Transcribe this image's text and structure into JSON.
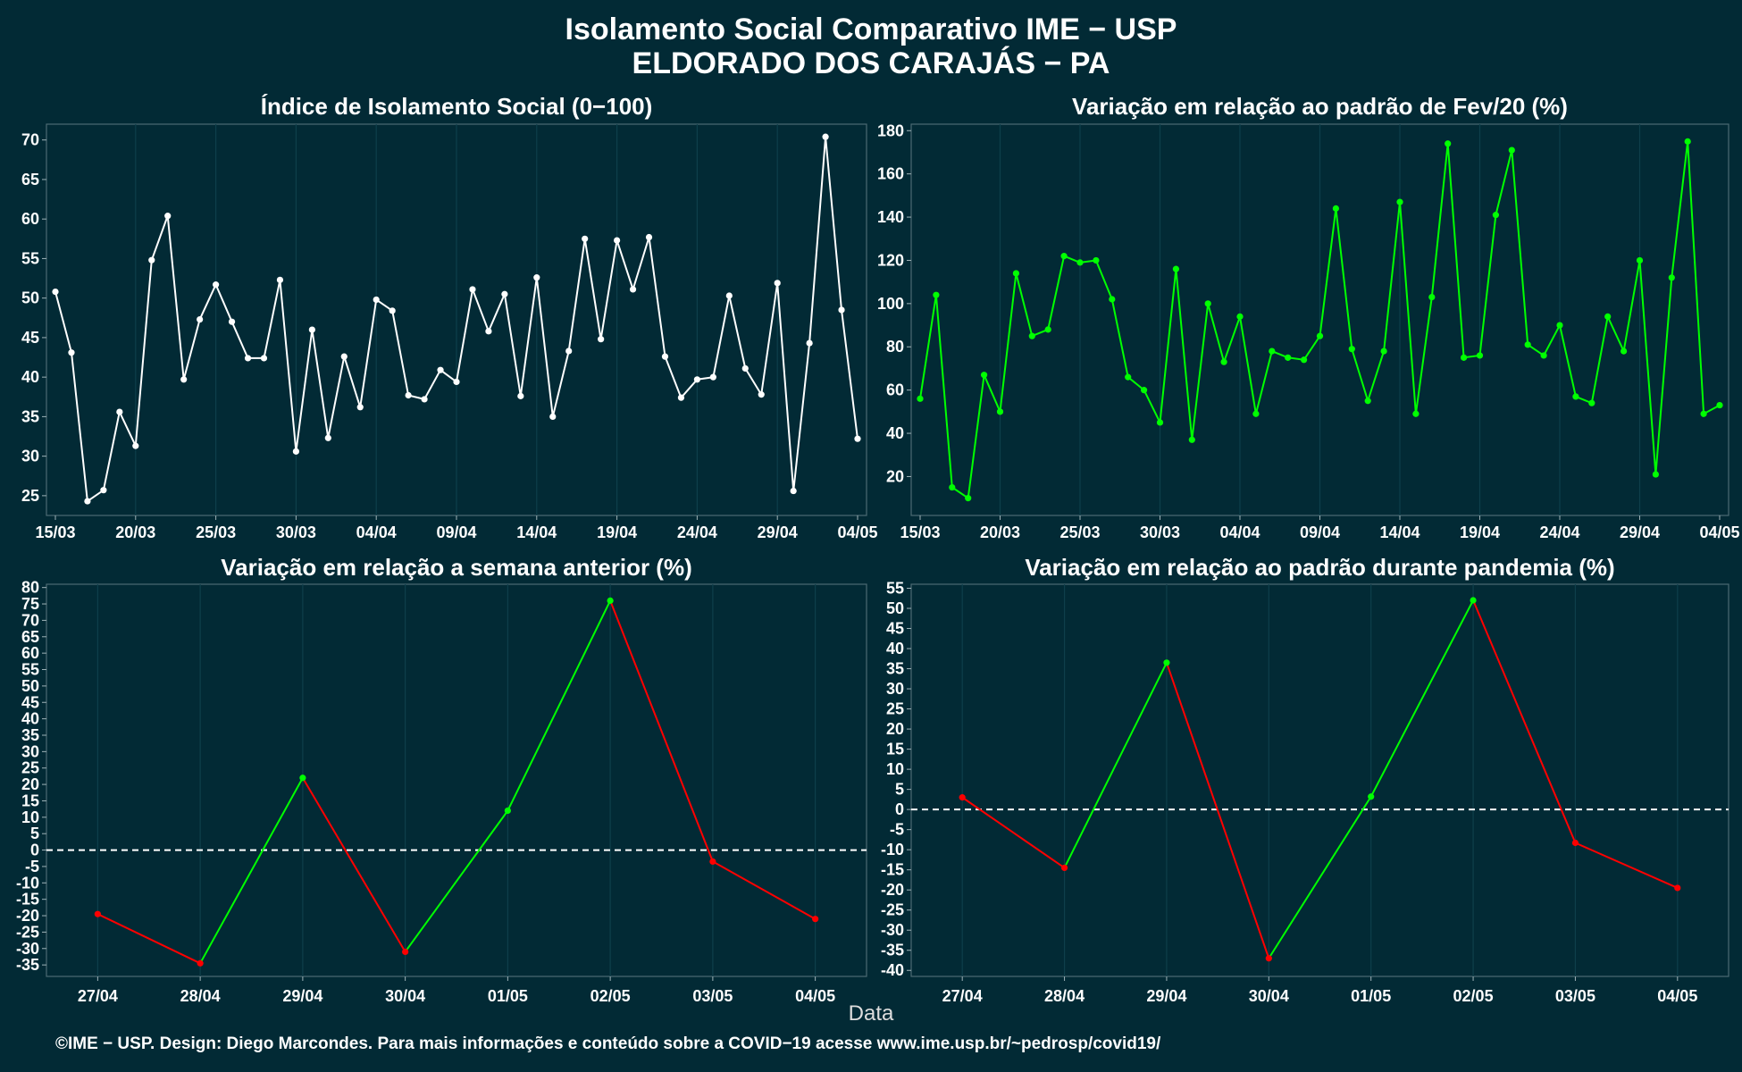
{
  "title_line1": "Isolamento Social Comparativo IME − USP",
  "title_line2": "ELDORADO DOS CARAJÁS − PA",
  "x_axis_label": "Data",
  "footer": "©IME − USP. Design: Diego Marcondes. Para mais informações e conteúdo sobre a COVID−19 acesse www.ime.usp.br/~pedrosp/covid19/",
  "colors": {
    "background": "#022a35",
    "white_series": "#ffffff",
    "green_series": "#00ff00",
    "increase": "#00ff00",
    "decrease": "#ff0000",
    "grid": "#0e3f4b"
  },
  "chart_data": [
    {
      "type": "line",
      "title": "Índice de Isolamento Social (0−100)",
      "x_labels": [
        "15/03",
        "20/03",
        "25/03",
        "30/03",
        "04/04",
        "09/04",
        "14/04",
        "19/04",
        "24/04",
        "29/04",
        "04/05"
      ],
      "x_start": "15/03",
      "x_end": "04/05",
      "ylim": [
        22.5,
        72
      ],
      "yticks": [
        25,
        30,
        35,
        40,
        45,
        50,
        55,
        60,
        65,
        70
      ],
      "grid": true,
      "values": [
        50.8,
        43.1,
        24.3,
        25.7,
        35.6,
        31.3,
        54.8,
        60.4,
        39.7,
        47.3,
        51.7,
        47.0,
        42.4,
        42.4,
        52.3,
        30.6,
        46.0,
        32.3,
        42.6,
        36.2,
        49.8,
        48.4,
        37.7,
        37.2,
        40.9,
        39.4,
        51.1,
        45.8,
        50.5,
        37.6,
        52.6,
        35.0,
        43.3,
        57.5,
        44.8,
        57.3,
        51.1,
        57.7,
        42.6,
        37.4,
        39.7,
        40.0,
        50.3,
        41.1,
        37.8,
        51.9,
        25.6,
        44.3,
        70.4,
        48.5,
        32.2
      ],
      "series_color": "#ffffff"
    },
    {
      "type": "line",
      "title": "Variação em relação ao padrão de Fev/20 (%)",
      "x_labels": [
        "15/03",
        "20/03",
        "25/03",
        "30/03",
        "04/04",
        "09/04",
        "14/04",
        "19/04",
        "24/04",
        "29/04",
        "04/05"
      ],
      "x_start": "15/03",
      "x_end": "04/05",
      "ylim": [
        2,
        183
      ],
      "yticks": [
        20,
        40,
        60,
        80,
        100,
        120,
        140,
        160,
        180
      ],
      "grid": true,
      "values": [
        56,
        104,
        15,
        10,
        67,
        50,
        114,
        85,
        88,
        122,
        119,
        120,
        102,
        66,
        60,
        45,
        116,
        37,
        100,
        73,
        94,
        49,
        78,
        75,
        74,
        85,
        144,
        79,
        55,
        78,
        147,
        49,
        103,
        174,
        75,
        76,
        141,
        171,
        81,
        76,
        90,
        57,
        54,
        94,
        78,
        120,
        21,
        112,
        175,
        49,
        53
      ],
      "series_color": "#00ff00"
    },
    {
      "type": "line",
      "title": "Variação em relação a semana anterior (%)",
      "categories": [
        "27/04",
        "28/04",
        "29/04",
        "30/04",
        "01/05",
        "02/05",
        "03/05",
        "04/05"
      ],
      "values": [
        -19.5,
        -34.5,
        22,
        -31,
        12,
        76,
        -3.5,
        -21
      ],
      "ylim": [
        -38.5,
        81
      ],
      "yticks": [
        -35,
        -30,
        -25,
        -20,
        -15,
        -10,
        -5,
        0,
        5,
        10,
        15,
        20,
        25,
        30,
        35,
        40,
        45,
        50,
        55,
        60,
        65,
        70,
        75,
        80
      ],
      "reference_line": 0,
      "segment_colors": "green when rising, red when falling"
    },
    {
      "type": "line",
      "title": "Variação em relação ao padrão durante pandemia (%)",
      "categories": [
        "27/04",
        "28/04",
        "29/04",
        "30/04",
        "01/05",
        "02/05",
        "03/05",
        "04/05"
      ],
      "values": [
        3,
        -14.5,
        36.5,
        -37,
        3.2,
        52,
        -8.3,
        -19.5
      ],
      "ylim": [
        -41.5,
        56
      ],
      "yticks": [
        -40,
        -35,
        -30,
        -25,
        -20,
        -15,
        -10,
        -5,
        0,
        5,
        10,
        15,
        20,
        25,
        30,
        35,
        40,
        45,
        50,
        55
      ],
      "reference_line": 0,
      "segment_colors": "green when rising, red when falling"
    }
  ]
}
